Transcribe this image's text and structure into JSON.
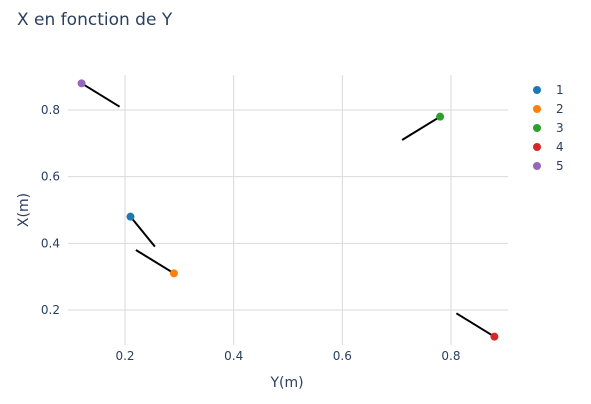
{
  "chart_data": {
    "type": "scatter",
    "title": "X en fonction de Y",
    "xlabel": "Y(m)",
    "ylabel": "X(m)",
    "xlim": [
      0.095,
      0.905
    ],
    "ylim": [
      0.095,
      0.905
    ],
    "xticks": [
      0.2,
      0.4,
      0.6,
      0.8
    ],
    "yticks": [
      0.2,
      0.4,
      0.6,
      0.8
    ],
    "xtick_labels": [
      "0.2",
      "0.4",
      "0.6",
      "0.8"
    ],
    "ytick_labels": [
      "0.2",
      "0.4",
      "0.6",
      "0.8"
    ],
    "grid": true,
    "legend_position": "right",
    "series": [
      {
        "name": "1",
        "color": "#1f77b4",
        "x": 0.21,
        "y": 0.48
      },
      {
        "name": "2",
        "color": "#ff7f0e",
        "x": 0.29,
        "y": 0.31
      },
      {
        "name": "3",
        "color": "#2ca02c",
        "x": 0.78,
        "y": 0.78
      },
      {
        "name": "4",
        "color": "#d62728",
        "x": 0.88,
        "y": 0.12
      },
      {
        "name": "5",
        "color": "#9467bd",
        "x": 0.12,
        "y": 0.88
      }
    ],
    "segments": [
      {
        "x1": 0.12,
        "y1": 0.88,
        "x2": 0.19,
        "y2": 0.81
      },
      {
        "x1": 0.21,
        "y1": 0.48,
        "x2": 0.255,
        "y2": 0.39
      },
      {
        "x1": 0.29,
        "y1": 0.31,
        "x2": 0.22,
        "y2": 0.38
      },
      {
        "x1": 0.78,
        "y1": 0.78,
        "x2": 0.71,
        "y2": 0.71
      },
      {
        "x1": 0.88,
        "y1": 0.12,
        "x2": 0.81,
        "y2": 0.19
      }
    ]
  }
}
